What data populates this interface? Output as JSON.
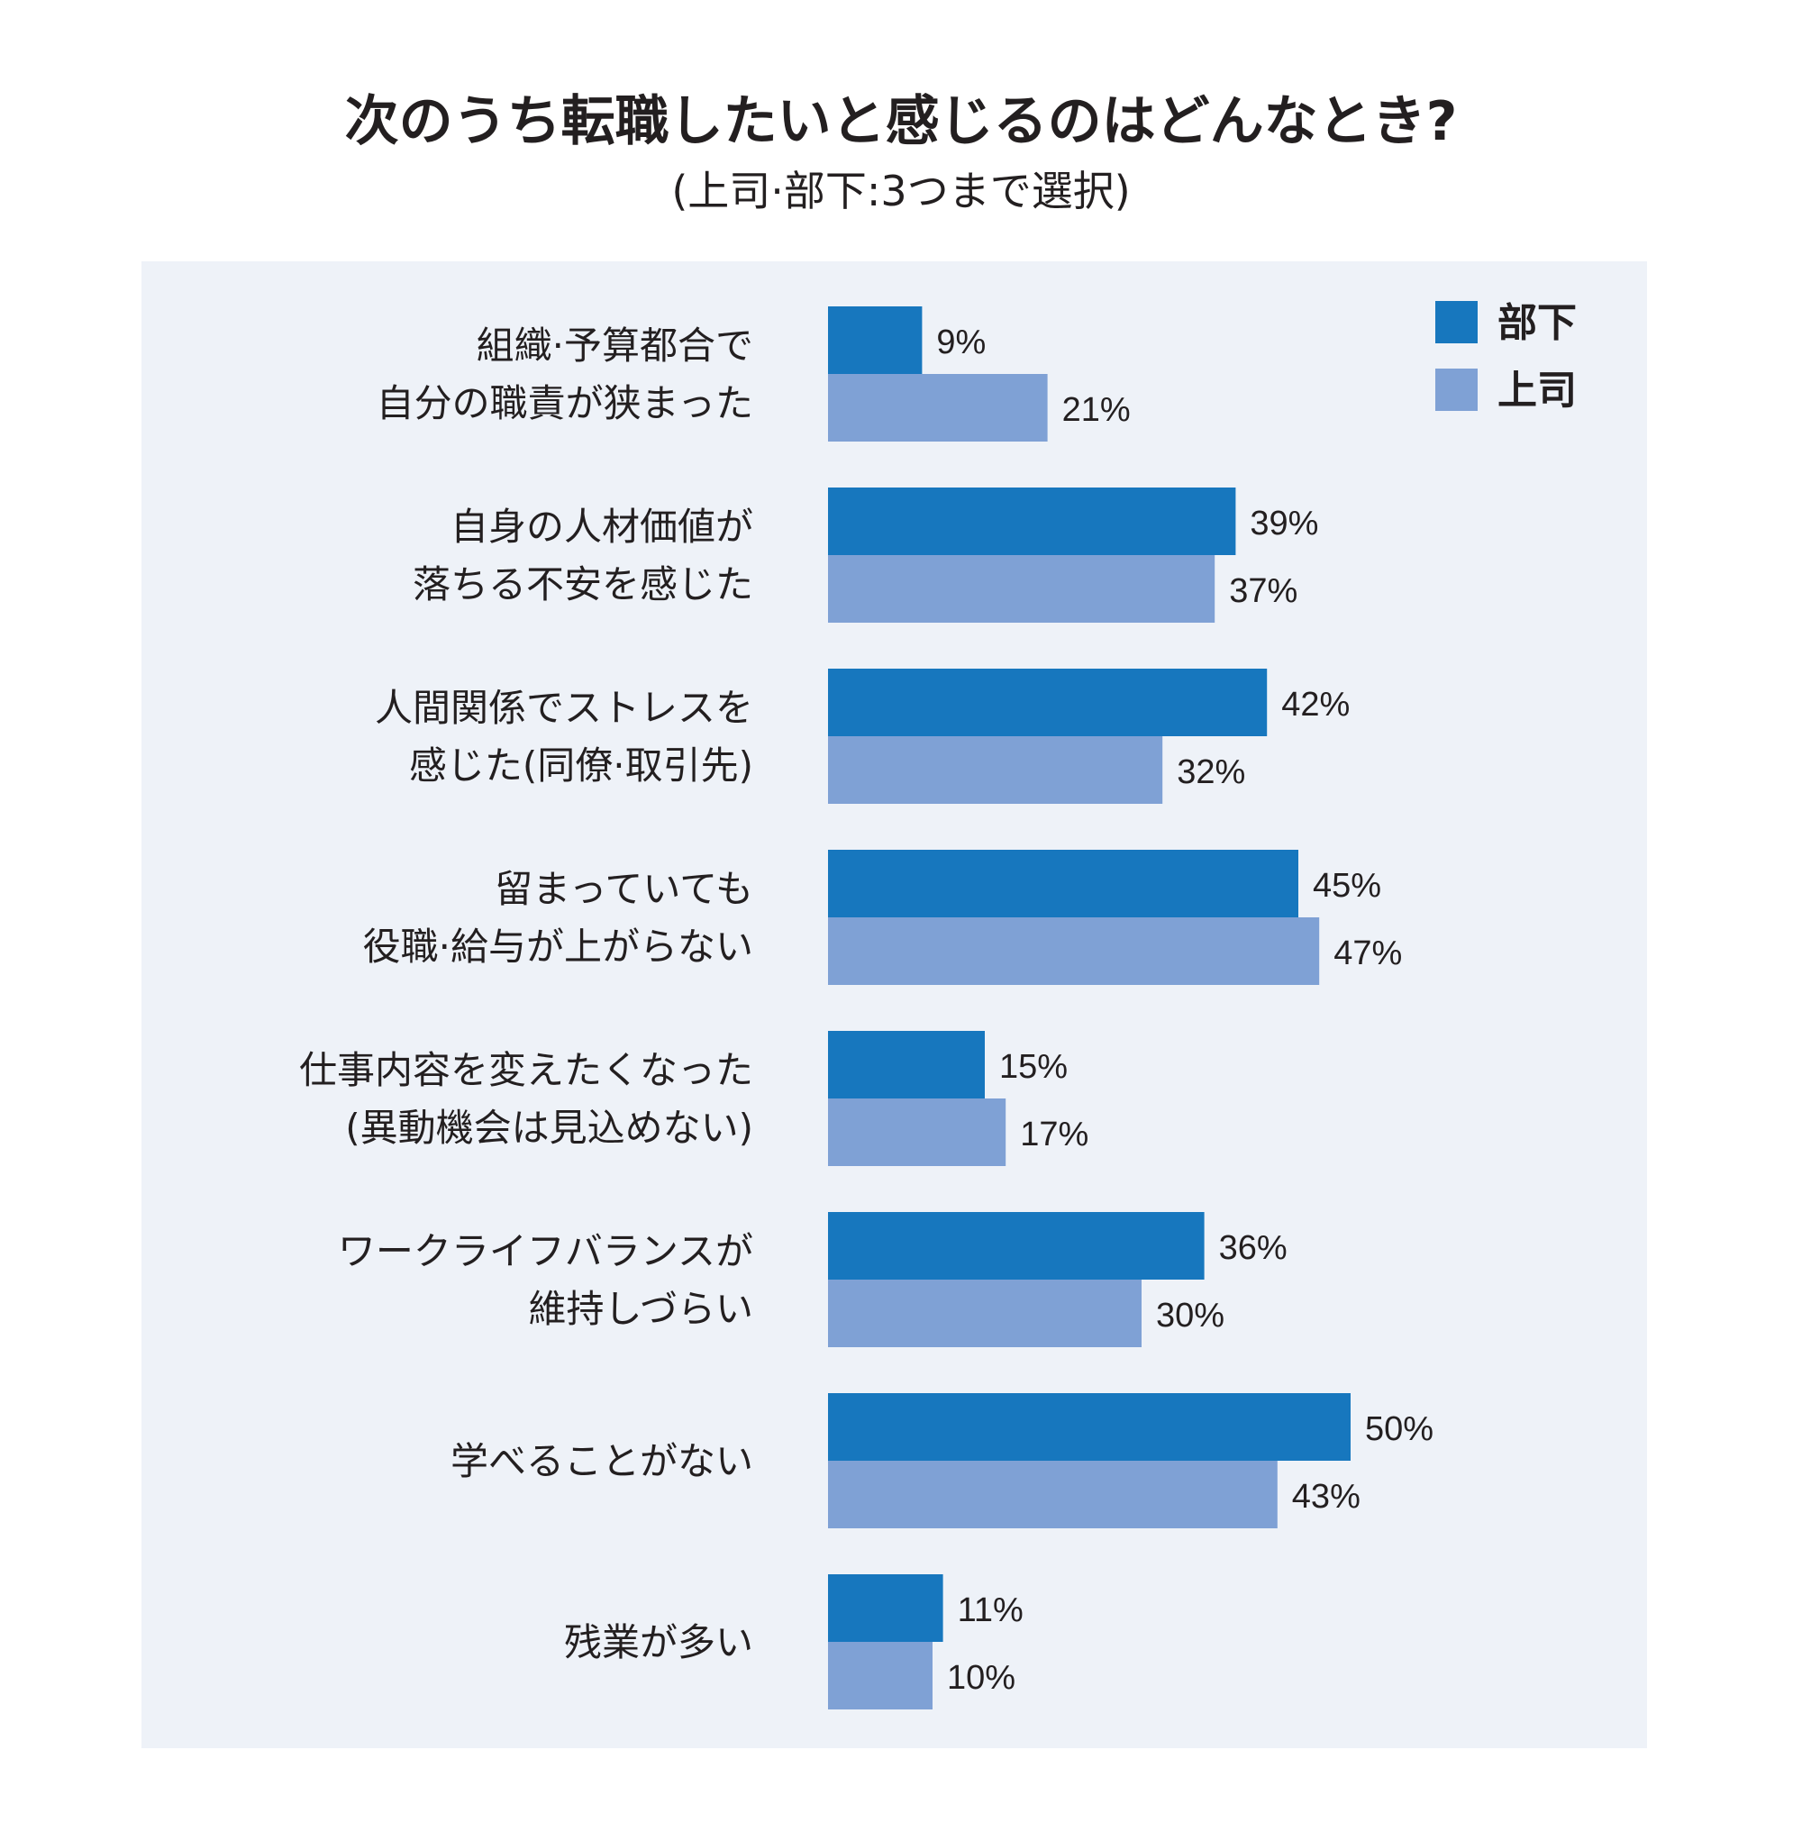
{
  "chart_data": {
    "type": "bar",
    "orientation": "horizontal",
    "title": "次のうち転職したいと感じるのはどんなとき?",
    "subtitle": "(上司·部下:3つまで選択)",
    "categories": [
      [
        "組織·予算都合で",
        "自分の職責が狭まった"
      ],
      [
        "自身の人材価値が",
        "落ちる不安を感じた"
      ],
      [
        "人間関係でストレスを",
        "感じた(同僚·取引先)"
      ],
      [
        "留まっていても",
        "役職·給与が上がらない"
      ],
      [
        "仕事内容を変えたくなった",
        "(異動機会は見込めない)"
      ],
      [
        "ワークライフバランスが",
        "維持しづらい"
      ],
      [
        "学べることがない"
      ],
      [
        "残業が多い"
      ]
    ],
    "series": [
      {
        "name": "部下",
        "color": "#1777be",
        "values": [
          9,
          39,
          42,
          45,
          15,
          36,
          50,
          11
        ],
        "value_labels": [
          "9%",
          "39%",
          "42%",
          "45%",
          "15%",
          "36%",
          "50%",
          "11%"
        ]
      },
      {
        "name": "上司",
        "color": "#7fa1d5",
        "values": [
          21,
          37,
          32,
          47,
          17,
          30,
          43,
          10
        ],
        "value_labels": [
          "21%",
          "37%",
          "32%",
          "47%",
          "17%",
          "30%",
          "43%",
          "10%"
        ]
      }
    ],
    "unit": "%",
    "xlim": [
      0,
      50
    ],
    "grid": false,
    "legend": "top-right",
    "panel_color": "#eef2f8"
  }
}
